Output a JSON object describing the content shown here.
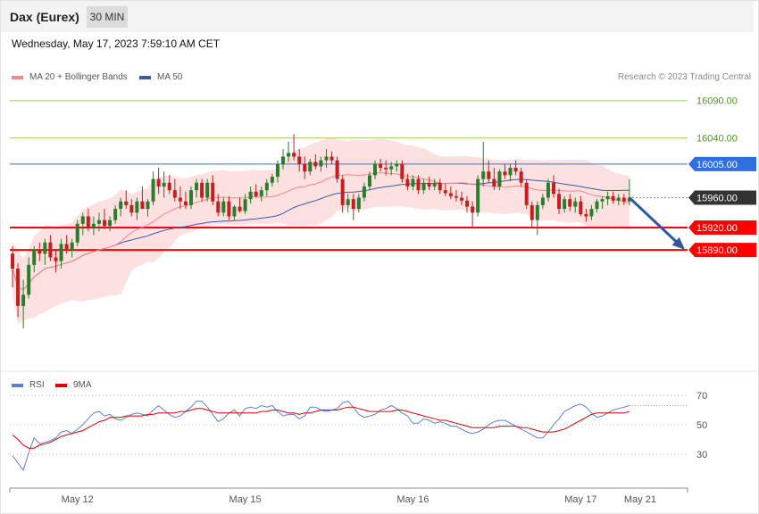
{
  "header": {
    "title": "Dax (Eurex)",
    "interval": "30 MIN"
  },
  "timestamp": "Wednesday, May 17, 2023 7:59:10 AM CET",
  "legend": {
    "ma20": "MA 20 + Bollinger Bands",
    "ma50": "MA 50",
    "rsi": "RSI",
    "ma9": "9MA"
  },
  "credit": "Research © 2023 Trading Central",
  "colors": {
    "up": "#2a7d2a",
    "down": "#c41e1e",
    "bollinger": "#fde0e0",
    "ma20": "#f08a8a",
    "ma50": "#3b5ba5",
    "resistance": "#9acd6a",
    "pivot": "#2f6fe0",
    "support": "#ff0000",
    "last": "#333333",
    "arrow": "#2c5aa0",
    "rsi": "#5b7fd6",
    "rsi_ma": "#e00000"
  },
  "chart_data": [
    {
      "type": "candlestick",
      "ylim": [
        15730,
        16110
      ],
      "levels": [
        {
          "value": 16090,
          "label": "16090.00",
          "kind": "resistance"
        },
        {
          "value": 16040,
          "label": "16040.00",
          "kind": "resistance"
        },
        {
          "value": 16005,
          "label": "16005.00",
          "kind": "pivot"
        },
        {
          "value": 15960,
          "label": "15960.00",
          "kind": "last"
        },
        {
          "value": 15920,
          "label": "15920.00",
          "kind": "support"
        },
        {
          "value": 15890,
          "label": "15890.00",
          "kind": "support"
        }
      ],
      "x_ticks": [
        {
          "index": 12,
          "label": "May 12"
        },
        {
          "index": 43,
          "label": "May 15"
        },
        {
          "index": 74,
          "label": "May 16"
        },
        {
          "index": 105,
          "label": "May 17"
        },
        {
          "index": 116,
          "label": "May 21"
        }
      ],
      "projection": {
        "from_index": 114,
        "from": 15960,
        "to_index": 124,
        "to": 15892
      },
      "candles": [
        [
          15885,
          15895,
          15840,
          15865
        ],
        [
          15865,
          15872,
          15800,
          15815
        ],
        [
          15815,
          15850,
          15785,
          15830
        ],
        [
          15830,
          15880,
          15825,
          15870
        ],
        [
          15870,
          15895,
          15860,
          15890
        ],
        [
          15890,
          15900,
          15875,
          15885
        ],
        [
          15885,
          15905,
          15870,
          15900
        ],
        [
          15900,
          15910,
          15875,
          15880
        ],
        [
          15880,
          15890,
          15860,
          15875
        ],
        [
          15875,
          15905,
          15865,
          15898
        ],
        [
          15898,
          15910,
          15885,
          15890
        ],
        [
          15890,
          15905,
          15880,
          15900
        ],
        [
          15900,
          15930,
          15895,
          15925
        ],
        [
          15925,
          15940,
          15910,
          15935
        ],
        [
          15935,
          15945,
          15915,
          15920
        ],
        [
          15920,
          15935,
          15910,
          15925
        ],
        [
          15925,
          15940,
          15915,
          15930
        ],
        [
          15930,
          15945,
          15918,
          15922
        ],
        [
          15922,
          15935,
          15915,
          15930
        ],
        [
          15930,
          15950,
          15925,
          15945
        ],
        [
          15945,
          15960,
          15935,
          15955
        ],
        [
          15955,
          15970,
          15945,
          15950
        ],
        [
          15950,
          15958,
          15935,
          15940
        ],
        [
          15940,
          15960,
          15930,
          15955
        ],
        [
          15955,
          15975,
          15945,
          15945
        ],
        [
          15945,
          15958,
          15935,
          15955
        ],
        [
          15955,
          15995,
          15950,
          15985
        ],
        [
          15985,
          16000,
          15965,
          15975
        ],
        [
          15975,
          15995,
          15960,
          15980
        ],
        [
          15980,
          15990,
          15965,
          15970
        ],
        [
          15970,
          15985,
          15955,
          15960
        ],
        [
          15960,
          15975,
          15945,
          15955
        ],
        [
          15955,
          15968,
          15945,
          15950
        ],
        [
          15950,
          15975,
          15945,
          15970
        ],
        [
          15970,
          15985,
          15960,
          15980
        ],
        [
          15980,
          15985,
          15955,
          15960
        ],
        [
          15960,
          15985,
          15955,
          15980
        ],
        [
          15980,
          15990,
          15950,
          15955
        ],
        [
          15955,
          15965,
          15935,
          15940
        ],
        [
          15940,
          15960,
          15935,
          15955
        ],
        [
          15955,
          15962,
          15930,
          15935
        ],
        [
          15935,
          15950,
          15930,
          15948
        ],
        [
          15948,
          15960,
          15940,
          15942
        ],
        [
          15942,
          15965,
          15938,
          15958
        ],
        [
          15958,
          15975,
          15952,
          15968
        ],
        [
          15968,
          15978,
          15960,
          15962
        ],
        [
          15962,
          15975,
          15955,
          15970
        ],
        [
          15970,
          15985,
          15962,
          15980
        ],
        [
          15980,
          15992,
          15975,
          15988
        ],
        [
          15988,
          16010,
          15980,
          16005
        ],
        [
          16005,
          16025,
          15998,
          16015
        ],
        [
          16015,
          16035,
          16008,
          16020
        ],
        [
          16020,
          16045,
          16010,
          16015
        ],
        [
          16015,
          16025,
          15995,
          16005
        ],
        [
          16005,
          16015,
          15985,
          15995
        ],
        [
          15995,
          16012,
          15990,
          16008
        ],
        [
          16008,
          16018,
          15998,
          16002
        ],
        [
          16002,
          16015,
          15995,
          16010
        ],
        [
          16010,
          16025,
          16000,
          16015
        ],
        [
          16015,
          16022,
          16005,
          16010
        ],
        [
          16010,
          16015,
          15980,
          15985
        ],
        [
          15985,
          15990,
          15940,
          15950
        ],
        [
          15950,
          15965,
          15940,
          15958
        ],
        [
          15958,
          15965,
          15930,
          15945
        ],
        [
          15945,
          15965,
          15940,
          15960
        ],
        [
          15960,
          15980,
          15955,
          15975
        ],
        [
          15975,
          15995,
          15970,
          15990
        ],
        [
          15990,
          16010,
          15985,
          16005
        ],
        [
          16005,
          16012,
          15995,
          16000
        ],
        [
          16000,
          16010,
          15990,
          15998
        ],
        [
          15998,
          16008,
          15990,
          16002
        ],
        [
          16002,
          16010,
          15995,
          16005
        ],
        [
          16005,
          16010,
          15980,
          15985
        ],
        [
          15985,
          15992,
          15970,
          15975
        ],
        [
          15975,
          15990,
          15970,
          15985
        ],
        [
          15985,
          15990,
          15965,
          15970
        ],
        [
          15970,
          15985,
          15965,
          15980
        ],
        [
          15980,
          15988,
          15970,
          15975
        ],
        [
          15975,
          15985,
          15970,
          15980
        ],
        [
          15980,
          15985,
          15965,
          15970
        ],
        [
          15970,
          15978,
          15962,
          15966
        ],
        [
          15966,
          15975,
          15958,
          15962
        ],
        [
          15962,
          15970,
          15955,
          15960
        ],
        [
          15960,
          15968,
          15950,
          15956
        ],
        [
          15956,
          15962,
          15940,
          15948
        ],
        [
          15948,
          15955,
          15920,
          15940
        ],
        [
          15940,
          15990,
          15935,
          15985
        ],
        [
          15985,
          16035,
          15975,
          15995
        ],
        [
          15995,
          16010,
          15980,
          15985
        ],
        [
          15985,
          16000,
          15970,
          15975
        ],
        [
          15975,
          15998,
          15970,
          15995
        ],
        [
          15995,
          16005,
          15985,
          15990
        ],
        [
          15990,
          16005,
          15982,
          16000
        ],
        [
          16000,
          16010,
          15990,
          15995
        ],
        [
          15995,
          16000,
          15975,
          15980
        ],
        [
          15980,
          15985,
          15945,
          15950
        ],
        [
          15950,
          15955,
          15920,
          15930
        ],
        [
          15930,
          15955,
          15910,
          15950
        ],
        [
          15950,
          15965,
          15945,
          15960
        ],
        [
          15960,
          15985,
          15955,
          15980
        ],
        [
          15980,
          15990,
          15960,
          15965
        ],
        [
          15965,
          15972,
          15938,
          15945
        ],
        [
          15945,
          15962,
          15940,
          15958
        ],
        [
          15958,
          15965,
          15942,
          15948
        ],
        [
          15948,
          15960,
          15940,
          15955
        ],
        [
          15955,
          15962,
          15935,
          15938
        ],
        [
          15938,
          15945,
          15928,
          15935
        ],
        [
          15935,
          15950,
          15930,
          15945
        ],
        [
          15945,
          15958,
          15940,
          15955
        ],
        [
          15955,
          15962,
          15945,
          15958
        ],
        [
          15958,
          15968,
          15950,
          15962
        ],
        [
          15962,
          15968,
          15952,
          15956
        ],
        [
          15956,
          15965,
          15950,
          15960
        ],
        [
          15960,
          15965,
          15950,
          15955
        ],
        [
          15955,
          15985,
          15950,
          15960
        ]
      ]
    },
    {
      "type": "line",
      "ylim": [
        8,
        84
      ],
      "y_ticks": [
        70,
        50,
        30
      ],
      "rsi": [
        29,
        24,
        19,
        31,
        41,
        37,
        38,
        39,
        41,
        45,
        46,
        44,
        47,
        50,
        54,
        58,
        59,
        56,
        57,
        54,
        53,
        55,
        57,
        58,
        57,
        56,
        60,
        63,
        60,
        57,
        55,
        56,
        59,
        62,
        66,
        66,
        62,
        57,
        52,
        54,
        58,
        60,
        56,
        61,
        62,
        61,
        63,
        62,
        63,
        59,
        56,
        57,
        57,
        54,
        56,
        62,
        62,
        60,
        59,
        60,
        61,
        65,
        66,
        62,
        57,
        55,
        56,
        57,
        60,
        61,
        63,
        61,
        58,
        56,
        51,
        51,
        54,
        53,
        51,
        52,
        51,
        49,
        49,
        47,
        45,
        44,
        45,
        47,
        50,
        52,
        53,
        53,
        51,
        49,
        47,
        45,
        43,
        41,
        41,
        45,
        50,
        54,
        59,
        61,
        63,
        64,
        62,
        58,
        55,
        56,
        58,
        60,
        61,
        62,
        63
      ],
      "rsi_ma": [
        43,
        40,
        36,
        34,
        34,
        36,
        37,
        38,
        40,
        42,
        43,
        44,
        45,
        46,
        48,
        50,
        52,
        53,
        55,
        55,
        55,
        56,
        56,
        56,
        56,
        57,
        57,
        58,
        58,
        58,
        58,
        59,
        59,
        60,
        61,
        61,
        60,
        59,
        58,
        58,
        58,
        58,
        58,
        58,
        58,
        58,
        59,
        59,
        60,
        60,
        59,
        58,
        58,
        57,
        58,
        58,
        59,
        60,
        60,
        60,
        60,
        61,
        62,
        62,
        61,
        60,
        59,
        59,
        59,
        59,
        59,
        60,
        60,
        59,
        58,
        57,
        56,
        55,
        54,
        53,
        53,
        52,
        51,
        50,
        49,
        48,
        48,
        48,
        48,
        48,
        49,
        49,
        49,
        49,
        48,
        48,
        47,
        46,
        45,
        45,
        45,
        46,
        47,
        49,
        51,
        53,
        55,
        57,
        58,
        58,
        58,
        58,
        58,
        58,
        59
      ]
    }
  ]
}
